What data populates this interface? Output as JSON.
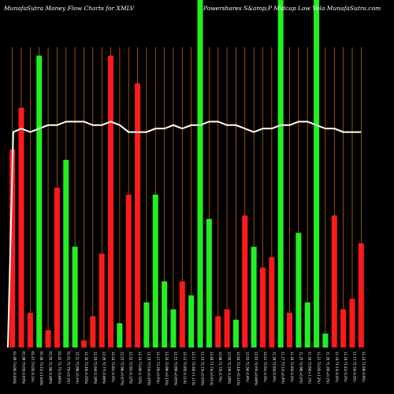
{
  "chart_data": {
    "type": "bar",
    "title_left": "MunafaSutra  Money  Flow  Charts for XMLV",
    "title_right": "Powershares S&amp;P Midcap Low  Vola MunafaSutra.com",
    "colors": {
      "up": "#22ee22",
      "down": "#ff1a1a",
      "grid": "#b8660b",
      "line": "#ffffff",
      "background": "#000000"
    },
    "ylim": [
      0,
      100
    ],
    "bars": [
      {
        "value": 57,
        "color": "down"
      },
      {
        "value": 69,
        "color": "down"
      },
      {
        "value": 10,
        "color": "down"
      },
      {
        "value": 84,
        "color": "up"
      },
      {
        "value": 5,
        "color": "down"
      },
      {
        "value": 46,
        "color": "down"
      },
      {
        "value": 54,
        "color": "up"
      },
      {
        "value": 29,
        "color": "up"
      },
      {
        "value": 2,
        "color": "down"
      },
      {
        "value": 9,
        "color": "down"
      },
      {
        "value": 27,
        "color": "down"
      },
      {
        "value": 84,
        "color": "down"
      },
      {
        "value": 7,
        "color": "up"
      },
      {
        "value": 44,
        "color": "down"
      },
      {
        "value": 76,
        "color": "down"
      },
      {
        "value": 13,
        "color": "up"
      },
      {
        "value": 44,
        "color": "up"
      },
      {
        "value": 19,
        "color": "up"
      },
      {
        "value": 11,
        "color": "up"
      },
      {
        "value": 19,
        "color": "down"
      },
      {
        "value": 15,
        "color": "up"
      },
      {
        "value": 100,
        "color": "up"
      },
      {
        "value": 37,
        "color": "up"
      },
      {
        "value": 9,
        "color": "down"
      },
      {
        "value": 11,
        "color": "down"
      },
      {
        "value": 8,
        "color": "up"
      },
      {
        "value": 38,
        "color": "down"
      },
      {
        "value": 29,
        "color": "up"
      },
      {
        "value": 23,
        "color": "down"
      },
      {
        "value": 26,
        "color": "down"
      },
      {
        "value": 100,
        "color": "up"
      },
      {
        "value": 10,
        "color": "down"
      },
      {
        "value": 33,
        "color": "up"
      },
      {
        "value": 13,
        "color": "up"
      },
      {
        "value": 100,
        "color": "up"
      },
      {
        "value": 4,
        "color": "up"
      },
      {
        "value": 38,
        "color": "down"
      },
      {
        "value": 11,
        "color": "down"
      },
      {
        "value": 14,
        "color": "down"
      },
      {
        "value": 30,
        "color": "down"
      }
    ],
    "line": [
      62,
      63,
      62,
      63,
      64,
      64,
      65,
      65,
      65,
      64,
      64,
      65,
      64,
      62,
      62,
      62,
      63,
      63,
      64,
      63,
      64,
      64,
      65,
      65,
      64,
      64,
      63,
      62,
      63,
      63,
      64,
      64,
      65,
      65,
      64,
      63,
      63,
      62,
      62,
      62
    ],
    "x": [
      "01.09 73.00(-0.04%)",
      "01.08 73.03(-0.03%)",
      "01.07 73.05(-0.1%)",
      "01.06 73.11(+1.04%)",
      "01.05 72.36(-0.48%)",
      "01.02 72.71(-0.06%)",
      "01.01 72.75(+0.1%)",
      "12.31 72.68(+0.3%)",
      "12.30 72.46(-0.25%)",
      "12.29 72.64(-0.18%)",
      "12.26 72.77(-0.06%)",
      "12.24 72.81(-0.2%)",
      "12.23 72.96(+0.07%)",
      "12.22 72.91(-0.12%)",
      "12.19 73.00(-0.72%)",
      "12.18 73.53(+0.25%)",
      "12.17 73.35(+0.5%)",
      "12.16 72.99(+0.13%)",
      "12.15 72.89(+0.05%)",
      "12.12 72.85(-0.11%)",
      "12.11 72.93(+1.11%)",
      "12.10 72.13(+0.55%)",
      "12.09 71.74(+0.01%)",
      "12.08 71.73(-0.7%)",
      "12.05 72.24(-0.28%)",
      "12.04 72.44(+0.11%)",
      "12.03 72.36(-0.4%)",
      "12.02 72.65(+0.06%)",
      "12.01 72.61(-0.3%)",
      "11.28 72.83(-0.4%)",
      "11.27 73.12(+0.4%)",
      "11.26 72.83(-0.2%)",
      "11.25 72.98(+0.2%)",
      "11.24 72.84(+1.1%)",
      "11.21 72.05(+1.2%)",
      "11.20 71.20(+0.1%)",
      "11.19 71.13(-0.4%)",
      "11.18 71.41(-0.2%)",
      "11.17 71.55(-0.2%)",
      "11.14 71.69(-0.6%)"
    ]
  }
}
